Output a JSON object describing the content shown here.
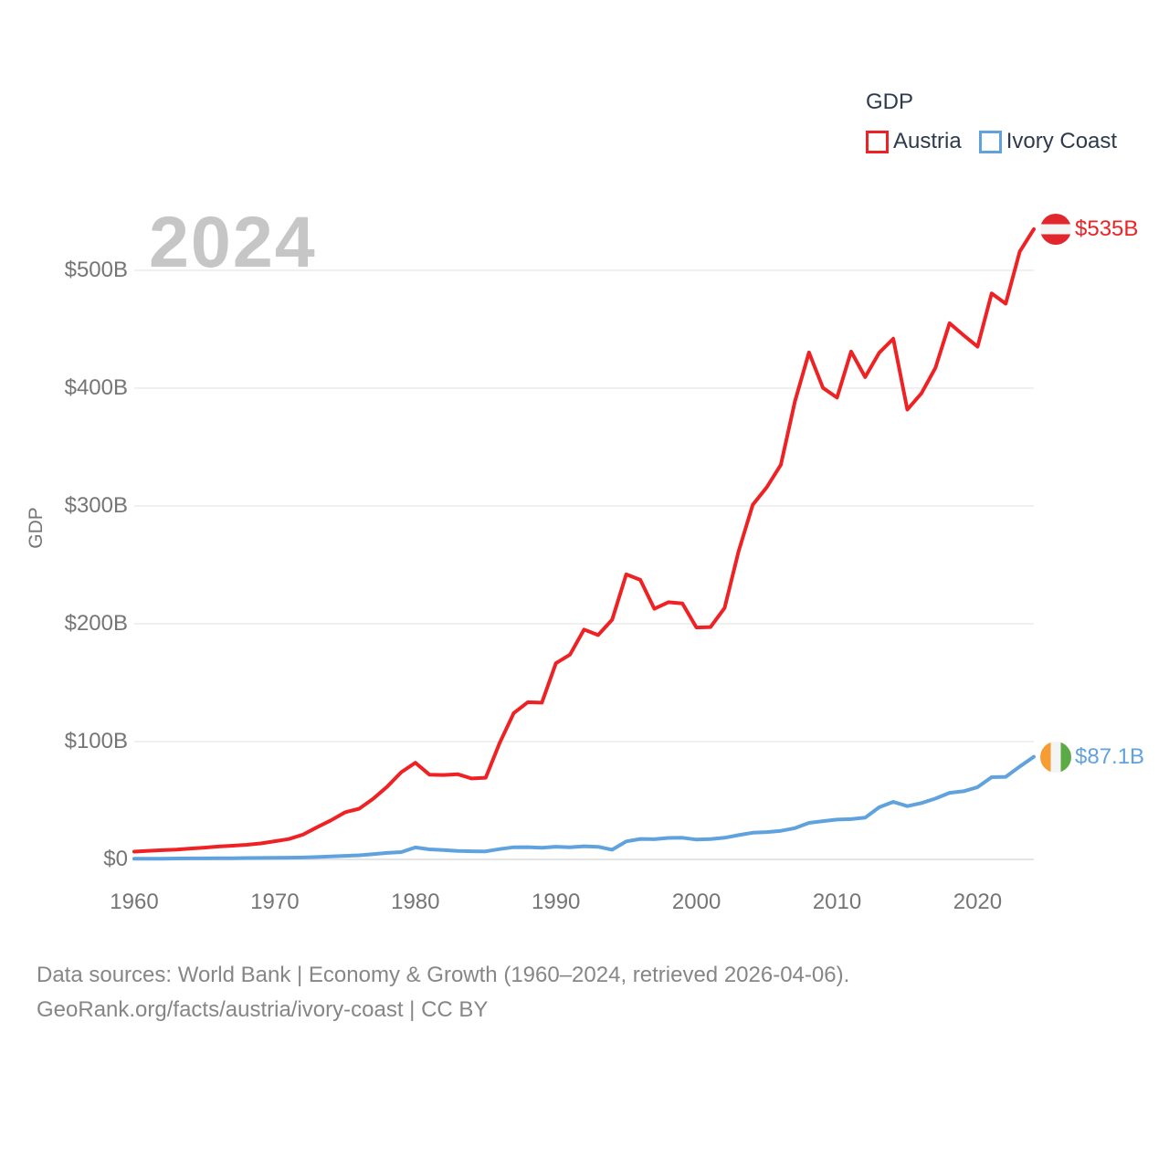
{
  "chart_data": {
    "type": "line",
    "title": "GDP",
    "ylabel": "GDP",
    "watermark_year": "2024",
    "xlim": [
      1960,
      2024
    ],
    "ylim": [
      0,
      500
    ],
    "grid": "horizontal",
    "legend_position": "top-right",
    "x_ticks": [
      1960,
      1970,
      1980,
      1990,
      2000,
      2010,
      2020
    ],
    "y_ticks": [
      {
        "value": 0,
        "label": "$0"
      },
      {
        "value": 100,
        "label": "$100B"
      },
      {
        "value": 200,
        "label": "$200B"
      },
      {
        "value": 300,
        "label": "$300B"
      },
      {
        "value": 400,
        "label": "$400B"
      },
      {
        "value": 500,
        "label": "$500B"
      }
    ],
    "years": [
      1960,
      1961,
      1962,
      1963,
      1964,
      1965,
      1966,
      1967,
      1968,
      1969,
      1970,
      1971,
      1972,
      1973,
      1974,
      1975,
      1976,
      1977,
      1978,
      1979,
      1980,
      1981,
      1982,
      1983,
      1984,
      1985,
      1986,
      1987,
      1988,
      1989,
      1990,
      1991,
      1992,
      1993,
      1994,
      1995,
      1996,
      1997,
      1998,
      1999,
      2000,
      2001,
      2002,
      2003,
      2004,
      2005,
      2006,
      2007,
      2008,
      2009,
      2010,
      2011,
      2012,
      2013,
      2014,
      2015,
      2016,
      2017,
      2018,
      2019,
      2020,
      2021,
      2022,
      2023,
      2024
    ],
    "series": [
      {
        "name": "Austria",
        "color": "#ee2224",
        "end_label": "$535B",
        "flag": {
          "orientation": "horizontal",
          "colors": [
            "#e1262d",
            "#f4f4f4",
            "#e1262d"
          ]
        },
        "values": [
          6.6,
          7.3,
          7.8,
          8.4,
          9.2,
          10.0,
          10.9,
          11.6,
          12.4,
          13.6,
          15.4,
          17.3,
          21.0,
          27.3,
          33.2,
          40.0,
          43.0,
          51.5,
          61.8,
          74.0,
          82.0,
          71.9,
          71.6,
          72.3,
          68.7,
          69.3,
          99.0,
          124.2,
          133.4,
          133.0,
          166.5,
          173.8,
          195.1,
          190.4,
          203.5,
          241.9,
          237.3,
          212.7,
          218.3,
          217.2,
          196.8,
          197.2,
          213.4,
          261.7,
          300.9,
          315.9,
          335.0,
          388.7,
          430.3,
          400.2,
          391.9,
          431.1,
          409.4,
          430.1,
          441.9,
          381.8,
          395.6,
          417.3,
          455.1,
          445.0,
          435.2,
          480.4,
          471.7,
          516.0,
          535.0
        ]
      },
      {
        "name": "Ivory Coast",
        "color": "#60a2de",
        "end_label": "$87.1B",
        "flag": {
          "orientation": "vertical",
          "colors": [
            "#f59d33",
            "#f4f4f4",
            "#5caa46"
          ]
        },
        "values": [
          0.55,
          0.62,
          0.64,
          0.75,
          0.85,
          0.88,
          0.95,
          1.0,
          1.15,
          1.24,
          1.36,
          1.45,
          1.62,
          2.0,
          2.59,
          3.03,
          3.49,
          4.39,
          5.52,
          6.22,
          10.18,
          8.54,
          7.94,
          7.24,
          6.88,
          6.79,
          8.79,
          10.28,
          10.35,
          9.88,
          10.8,
          10.22,
          11.15,
          10.71,
          8.23,
          15.3,
          17.4,
          17.1,
          18.2,
          18.4,
          16.8,
          17.3,
          18.4,
          20.6,
          22.6,
          23.2,
          24.3,
          26.5,
          31.0,
          32.5,
          33.8,
          34.2,
          35.4,
          44.3,
          48.8,
          45.2,
          47.8,
          51.6,
          56.5,
          57.8,
          61.3,
          69.8,
          70.1,
          78.8,
          87.1
        ]
      }
    ]
  },
  "legend": {
    "title": "GDP",
    "items": [
      {
        "label": "Austria",
        "color": "#ee2224"
      },
      {
        "label": "Ivory Coast",
        "color": "#60a2de"
      }
    ]
  },
  "watermark": "2024",
  "axis": {
    "y_title": "GDP"
  },
  "footer": {
    "line1": "Data sources: World Bank | Economy & Growth (1960–2024, retrieved 2026-04-06).",
    "line2": "GeoRank.org/facts/austria/ivory-coast | CC BY"
  },
  "colors": {
    "grid": "#ececec",
    "grid_zero": "#dcdcdc",
    "tick_text": "#757575",
    "legend_text": "#2c3a4d",
    "watermark": "#c6c6c6",
    "footer_text": "#868686"
  }
}
